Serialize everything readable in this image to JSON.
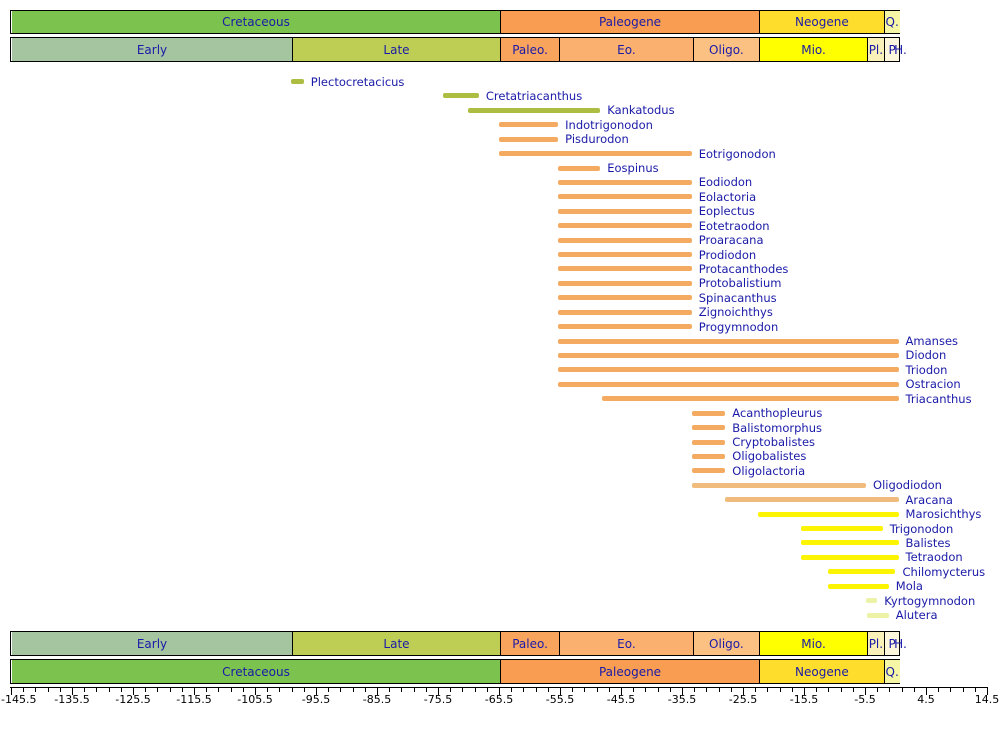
{
  "colors": {
    "label_text": "#1A1AA8",
    "axis": "#000000",
    "bar_palette": {
      "olive": "#ACBD41",
      "orange": "#F4AA60",
      "buff": "#F0BB7D",
      "yellow": "#FCF400",
      "pale": "#EDF3A6"
    }
  },
  "chart_data": {
    "type": "bar",
    "orientation": "horizontal-range",
    "title": "",
    "axis": {
      "min": -145.5,
      "max": 14.5,
      "minor_step": 2,
      "major_step": 10,
      "tick_labels": [
        "-145.5",
        "-135.5",
        "-125.5",
        "-115.5",
        "-105.5",
        "-95.5",
        "-85.5",
        "-75.5",
        "-65.5",
        "-55.5",
        "-45.5",
        "-35.5",
        "-25.5",
        "-15.5",
        "-5.5",
        "4.5",
        "14.5"
      ]
    },
    "periods": [
      {
        "label": "Cretaceous",
        "start": -145.5,
        "end": -65.5,
        "color": "#7CC24E"
      },
      {
        "label": "Paleogene",
        "start": -65.5,
        "end": -23.03,
        "color": "#F89D51"
      },
      {
        "label": "Neogene",
        "start": -23.03,
        "end": -2.588,
        "color": "#FFDD2C"
      },
      {
        "label": "Q.",
        "start": -2.588,
        "end": 0,
        "color": "#F6F7A6"
      }
    ],
    "epochs": [
      {
        "label": "Early",
        "start": -145.5,
        "end": -99.6,
        "color": "#A5C5A1"
      },
      {
        "label": "Late",
        "start": -99.6,
        "end": -65.5,
        "color": "#BECE55"
      },
      {
        "label": "Paleo.",
        "start": -65.5,
        "end": -55.8,
        "color": "#F9A45C"
      },
      {
        "label": "Eo.",
        "start": -55.8,
        "end": -33.9,
        "color": "#FAB06E"
      },
      {
        "label": "Oligo.",
        "start": -33.9,
        "end": -23.03,
        "color": "#FBC183"
      },
      {
        "label": "Mio.",
        "start": -23.03,
        "end": -5.332,
        "color": "#FFFF00"
      },
      {
        "label": "Pl.",
        "start": -5.332,
        "end": -2.588,
        "color": "#F9F1B8"
      },
      {
        "label": "P",
        "start": -2.588,
        "end": -0.0117,
        "color": "#FCF6DC"
      },
      {
        "label": "H.",
        "start": -0.0117,
        "end": 0,
        "color": "#FEFEF0"
      }
    ],
    "taxa": [
      {
        "name": "Plectocretacicus",
        "start": -99.6,
        "end": -97.5,
        "color": "olive"
      },
      {
        "name": "Cretatriacanthus",
        "start": -74.7,
        "end": -68.8,
        "color": "olive"
      },
      {
        "name": "Kankatodus",
        "start": -70.6,
        "end": -48.9,
        "color": "olive"
      },
      {
        "name": "Indotrigonodon",
        "start": -65.5,
        "end": -55.8,
        "color": "orange"
      },
      {
        "name": "Pisdurodon",
        "start": -65.5,
        "end": -55.8,
        "color": "orange"
      },
      {
        "name": "Eotrigonodon",
        "start": -65.5,
        "end": -33.9,
        "color": "orange"
      },
      {
        "name": "Eospinus",
        "start": -55.8,
        "end": -48.9,
        "color": "orange"
      },
      {
        "name": "Eodiodon",
        "start": -55.8,
        "end": -33.9,
        "color": "orange"
      },
      {
        "name": "Eolactoria",
        "start": -55.8,
        "end": -33.9,
        "color": "orange"
      },
      {
        "name": "Eoplectus",
        "start": -55.8,
        "end": -33.9,
        "color": "orange"
      },
      {
        "name": "Eotetraodon",
        "start": -55.8,
        "end": -33.9,
        "color": "orange"
      },
      {
        "name": "Proaracana",
        "start": -55.8,
        "end": -33.9,
        "color": "orange"
      },
      {
        "name": "Prodiodon",
        "start": -55.8,
        "end": -33.9,
        "color": "orange"
      },
      {
        "name": "Protacanthodes",
        "start": -55.8,
        "end": -33.9,
        "color": "orange"
      },
      {
        "name": "Protobalistium",
        "start": -55.8,
        "end": -33.9,
        "color": "orange"
      },
      {
        "name": "Spinacanthus",
        "start": -55.8,
        "end": -33.9,
        "color": "orange"
      },
      {
        "name": "Zignoichthys",
        "start": -55.8,
        "end": -33.9,
        "color": "orange"
      },
      {
        "name": "Progymnodon",
        "start": -55.8,
        "end": -33.9,
        "color": "orange"
      },
      {
        "name": "Amanses",
        "start": -55.8,
        "end": 0,
        "color": "orange"
      },
      {
        "name": "Diodon",
        "start": -55.8,
        "end": 0,
        "color": "orange"
      },
      {
        "name": "Triodon",
        "start": -55.8,
        "end": 0,
        "color": "orange"
      },
      {
        "name": "Ostracion",
        "start": -55.8,
        "end": 0,
        "color": "orange"
      },
      {
        "name": "Triacanthus",
        "start": -48.6,
        "end": 0,
        "color": "orange"
      },
      {
        "name": "Acanthopleurus",
        "start": -33.9,
        "end": -28.4,
        "color": "orange"
      },
      {
        "name": "Balistomorphus",
        "start": -33.9,
        "end": -28.4,
        "color": "orange"
      },
      {
        "name": "Cryptobalistes",
        "start": -33.9,
        "end": -28.4,
        "color": "orange"
      },
      {
        "name": "Oligobalistes",
        "start": -33.9,
        "end": -28.4,
        "color": "orange"
      },
      {
        "name": "Oligolactoria",
        "start": -33.9,
        "end": -28.4,
        "color": "orange"
      },
      {
        "name": "Oligodiodon",
        "start": -33.9,
        "end": -5.33,
        "color": "buff"
      },
      {
        "name": "Aracana",
        "start": -28.4,
        "end": 0,
        "color": "buff"
      },
      {
        "name": "Marosichthys",
        "start": -23.03,
        "end": 0,
        "color": "yellow"
      },
      {
        "name": "Trigonodon",
        "start": -16.0,
        "end": -2.6,
        "color": "yellow"
      },
      {
        "name": "Balistes",
        "start": -16.0,
        "end": 0,
        "color": "yellow"
      },
      {
        "name": "Tetraodon",
        "start": -16.0,
        "end": 0,
        "color": "yellow"
      },
      {
        "name": "Chilomycterus",
        "start": -11.6,
        "end": -0.5,
        "color": "yellow"
      },
      {
        "name": "Mola",
        "start": -11.6,
        "end": -1.6,
        "color": "yellow"
      },
      {
        "name": "Kyrtogymnodon",
        "start": -5.33,
        "end": -3.5,
        "color": "pale"
      },
      {
        "name": "Alutera",
        "start": -5.1,
        "end": -1.6,
        "color": "pale"
      }
    ]
  }
}
